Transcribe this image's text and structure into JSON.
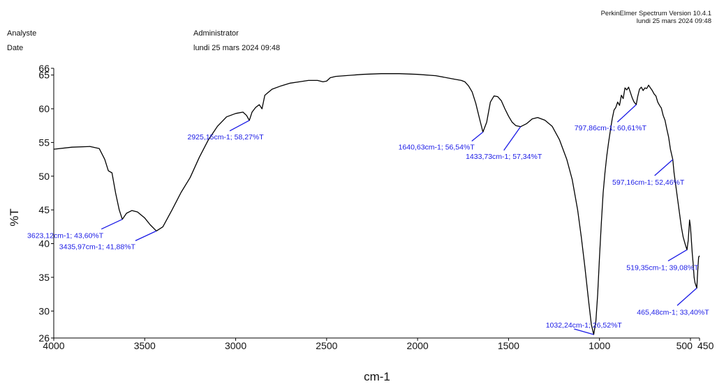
{
  "header": {
    "software": "PerkinElmer Spectrum Version 10.4.1",
    "software_date": "lundi 25 mars 2024 09:48",
    "analyst_label": "Analyste",
    "analyst_value": "Administrator",
    "date_label": "Date",
    "date_value": "lundi 25 mars 2024 09:48"
  },
  "chart_data": {
    "type": "line",
    "xlabel": "cm-1",
    "ylabel": "%T",
    "xlim": [
      4000,
      450
    ],
    "ylim": [
      26,
      66
    ],
    "x_reversed": true,
    "x_ticks": [
      4000,
      3500,
      3000,
      2500,
      2000,
      1500,
      1000,
      500,
      450
    ],
    "x_tick_labels": [
      "4000",
      "3500",
      "3000",
      "2500",
      "2000",
      "1500",
      "1000",
      "500",
      "450"
    ],
    "y_ticks": [
      26,
      30,
      35,
      40,
      45,
      50,
      55,
      60,
      65,
      66
    ],
    "grid": false,
    "line_color": "#000000",
    "annotation_color": "#1a1ae6",
    "series": [
      {
        "x": [
          4000,
          3900,
          3800,
          3750,
          3720,
          3700,
          3680,
          3660,
          3640,
          3623,
          3600,
          3570,
          3540,
          3500,
          3470,
          3436,
          3400,
          3350,
          3300,
          3250,
          3200,
          3150,
          3100,
          3050,
          3000,
          2960,
          2940,
          2925,
          2910,
          2890,
          2870,
          2855,
          2840,
          2800,
          2750,
          2700,
          2650,
          2600,
          2550,
          2520,
          2500,
          2480,
          2450,
          2400,
          2300,
          2200,
          2100,
          2000,
          1900,
          1800,
          1760,
          1740,
          1720,
          1700,
          1680,
          1660,
          1641,
          1620,
          1600,
          1580,
          1560,
          1540,
          1520,
          1500,
          1480,
          1460,
          1434,
          1400,
          1370,
          1340,
          1300,
          1260,
          1220,
          1180,
          1150,
          1120,
          1100,
          1080,
          1060,
          1045,
          1032,
          1020,
          1010,
          1000,
          990,
          980,
          970,
          960,
          950,
          940,
          930,
          920,
          910,
          900,
          890,
          880,
          870,
          860,
          850,
          840,
          830,
          820,
          810,
          798,
          790,
          780,
          770,
          760,
          750,
          740,
          730,
          720,
          710,
          700,
          690,
          680,
          670,
          660,
          650,
          640,
          630,
          620,
          610,
          597,
          590,
          580,
          570,
          560,
          550,
          540,
          530,
          519,
          512,
          505,
          500,
          495,
          490,
          485,
          480,
          475,
          470,
          465,
          460,
          455,
          450
        ],
        "y": [
          54.0,
          54.3,
          54.4,
          54.1,
          52.5,
          50.8,
          50.5,
          47.5,
          45.0,
          43.6,
          44.5,
          44.9,
          44.7,
          43.8,
          42.8,
          41.88,
          42.5,
          45.0,
          47.6,
          49.8,
          52.8,
          55.4,
          57.4,
          58.8,
          59.3,
          59.5,
          59.0,
          58.27,
          59.5,
          60.2,
          60.6,
          60.0,
          62.0,
          62.9,
          63.4,
          63.8,
          64.0,
          64.2,
          64.2,
          64.0,
          64.1,
          64.6,
          64.8,
          64.9,
          65.1,
          65.2,
          65.2,
          65.1,
          64.9,
          64.4,
          64.2,
          64.0,
          63.4,
          62.5,
          60.8,
          58.6,
          56.54,
          58.0,
          61.0,
          61.9,
          61.8,
          61.2,
          60.0,
          58.9,
          58.0,
          57.5,
          57.34,
          57.8,
          58.5,
          58.7,
          58.3,
          57.4,
          55.4,
          52.5,
          49.5,
          45.0,
          41.0,
          36.5,
          31.5,
          28.0,
          26.52,
          28.5,
          32.5,
          38.0,
          43.0,
          47.5,
          50.5,
          53.0,
          55.0,
          56.8,
          58.5,
          59.8,
          60.2,
          61.0,
          60.5,
          62.0,
          61.5,
          63.1,
          62.8,
          63.2,
          62.4,
          61.6,
          61.0,
          60.61,
          61.8,
          62.9,
          63.2,
          62.7,
          63.1,
          63.0,
          63.5,
          63.1,
          62.7,
          62.2,
          61.9,
          61.0,
          60.5,
          60.1,
          59.0,
          58.3,
          57.0,
          55.8,
          54.0,
          52.46,
          50.5,
          48.5,
          46.5,
          44.5,
          42.5,
          41.0,
          40.0,
          39.08,
          40.5,
          43.5,
          42.5,
          40.5,
          38.5,
          37.0,
          35.0,
          34.2,
          33.8,
          33.4,
          36.0,
          38.0,
          38.2
        ]
      }
    ],
    "peaks": [
      {
        "x": 3623.12,
        "y": 43.6,
        "label": "3623,12cm-1; 43,60%T"
      },
      {
        "x": 3435.97,
        "y": 41.88,
        "label": "3435,97cm-1; 41,88%T"
      },
      {
        "x": 2925.15,
        "y": 58.27,
        "label": "2925,15cm-1; 58,27%T"
      },
      {
        "x": 1640.63,
        "y": 56.54,
        "label": "1640,63cm-1; 56,54%T"
      },
      {
        "x": 1433.73,
        "y": 57.34,
        "label": "1433,73cm-1; 57,34%T"
      },
      {
        "x": 1032.24,
        "y": 26.52,
        "label": "1032,24cm-1; 26,52%T"
      },
      {
        "x": 797.86,
        "y": 60.61,
        "label": "797,86cm-1; 60,61%T"
      },
      {
        "x": 597.16,
        "y": 52.46,
        "label": "597,16cm-1; 52,46%T"
      },
      {
        "x": 519.35,
        "y": 39.08,
        "label": "519,35cm-1; 39,08%T"
      },
      {
        "x": 465.48,
        "y": 33.4,
        "label": "465,48cm-1; 33,40%T"
      }
    ]
  }
}
